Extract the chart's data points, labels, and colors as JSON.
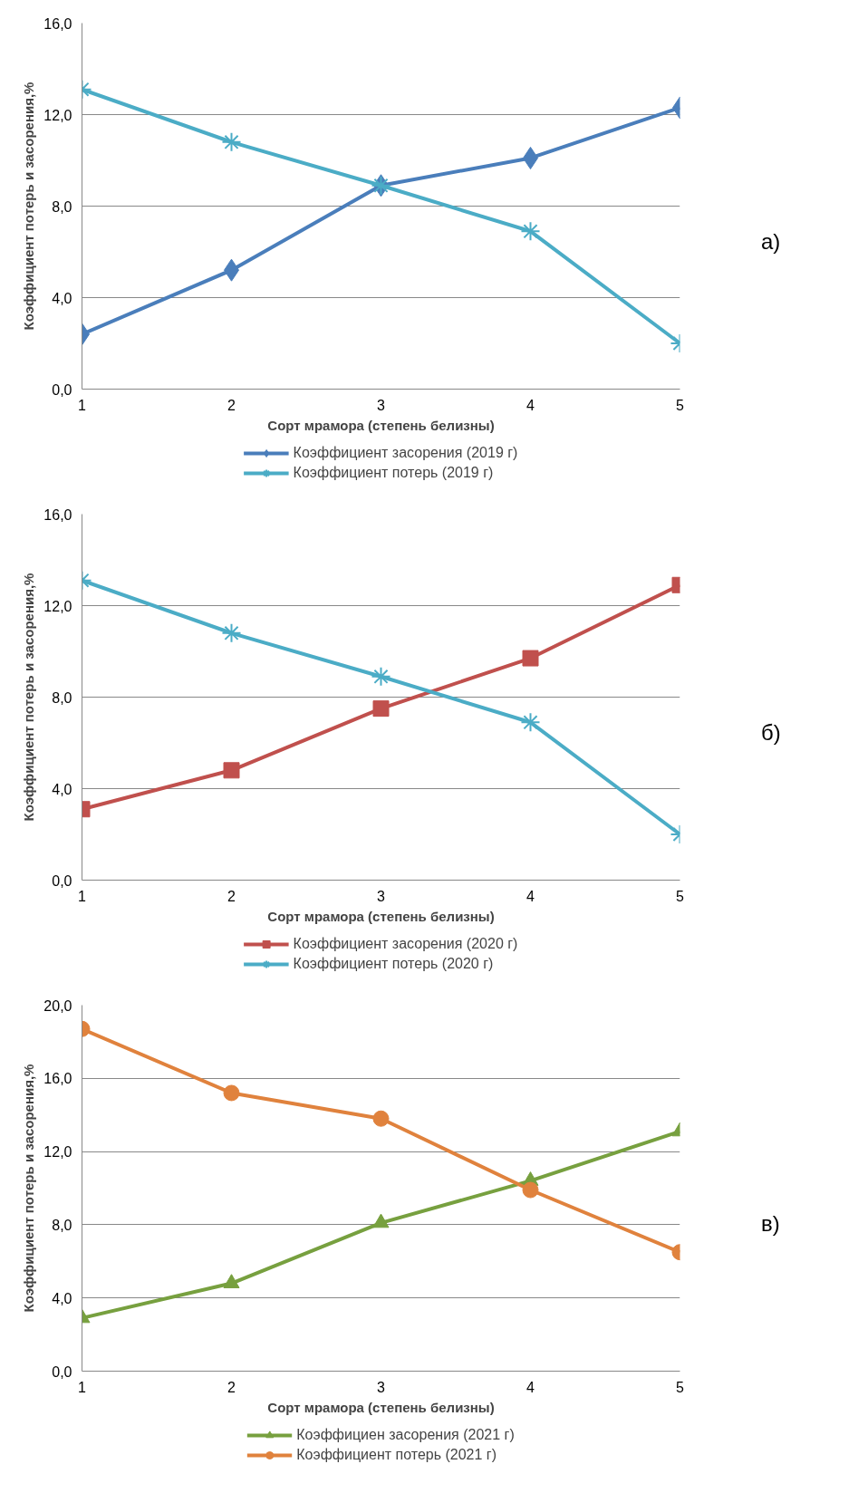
{
  "chart_data": [
    {
      "type": "line",
      "xlabel": "Сорт мрамора (степень белизны)",
      "ylabel": "Коэффициент потерь и засорения,%",
      "annotations": [
        "а)"
      ],
      "x": [
        1,
        2,
        3,
        4,
        5
      ],
      "xlim": [
        1,
        5
      ],
      "xticks": [
        1,
        2,
        3,
        4,
        5
      ],
      "ylim": [
        0,
        16
      ],
      "yticks": [
        {
          "value": 0,
          "label": "0,0"
        },
        {
          "value": 4,
          "label": "4,0"
        },
        {
          "value": 8,
          "label": "8,0"
        },
        {
          "value": 12,
          "label": "12,0"
        },
        {
          "value": 16,
          "label": "16,0"
        }
      ],
      "grid": "y",
      "legend": "bottom",
      "line_style": "solid",
      "series": [
        {
          "name": "Коэффициент засорения (2019 г)",
          "color": "#4a7ebb",
          "marker": "diamond",
          "values": [
            2.4,
            5.2,
            8.9,
            10.1,
            12.3
          ]
        },
        {
          "name": "Коэффициент потерь (2019 г)",
          "color": "#4bacc6",
          "marker": "cross",
          "values": [
            13.1,
            10.8,
            8.9,
            6.9,
            2.0
          ]
        }
      ]
    },
    {
      "type": "line",
      "xlabel": "Сорт мрамора (степень белизны)",
      "ylabel": "Коэффициент потерь и засорения,%",
      "annotations": [
        "б)"
      ],
      "x": [
        1,
        2,
        3,
        4,
        5
      ],
      "xlim": [
        1,
        5
      ],
      "xticks": [
        1,
        2,
        3,
        4,
        5
      ],
      "ylim": [
        0,
        16
      ],
      "yticks": [
        {
          "value": 0,
          "label": "0,0"
        },
        {
          "value": 4,
          "label": "4,0"
        },
        {
          "value": 8,
          "label": "8,0"
        },
        {
          "value": 12,
          "label": "12,0"
        },
        {
          "value": 16,
          "label": "16,0"
        }
      ],
      "grid": "y",
      "legend": "bottom",
      "line_style": "solid",
      "series": [
        {
          "name": "Коэффициент засорения (2020 г)",
          "color": "#c0504d",
          "marker": "square",
          "values": [
            3.1,
            4.8,
            7.5,
            9.7,
            12.9
          ]
        },
        {
          "name": "Коэффициент потерь (2020 г)",
          "color": "#4bacc6",
          "marker": "cross",
          "values": [
            13.1,
            10.8,
            8.9,
            6.9,
            2.0
          ]
        }
      ]
    },
    {
      "type": "line",
      "xlabel": "Сорт мрамора (степень белизны)",
      "ylabel": "Коэффициент потерь и засорения,%",
      "annotations": [
        "в)"
      ],
      "x": [
        1,
        2,
        3,
        4,
        5
      ],
      "xlim": [
        1,
        5
      ],
      "xticks": [
        1,
        2,
        3,
        4,
        5
      ],
      "ylim": [
        0,
        20
      ],
      "yticks": [
        {
          "value": 0,
          "label": "0,0"
        },
        {
          "value": 4,
          "label": "4,0"
        },
        {
          "value": 8,
          "label": "8,0"
        },
        {
          "value": 12,
          "label": "12,0"
        },
        {
          "value": 16,
          "label": "16,0"
        },
        {
          "value": 20,
          "label": "20,0"
        }
      ],
      "grid": "y",
      "legend": "bottom",
      "line_style": "solid",
      "series": [
        {
          "name": "Коэффициен засорения (2021 г)",
          "color": "#77a03f",
          "marker": "triangle",
          "values": [
            2.9,
            4.8,
            8.1,
            10.4,
            13.1
          ]
        },
        {
          "name": "Коэффициент потерь (2021 г)",
          "color": "#e0823d",
          "marker": "circle",
          "values": [
            18.7,
            15.2,
            13.8,
            9.9,
            6.5
          ]
        }
      ]
    }
  ]
}
